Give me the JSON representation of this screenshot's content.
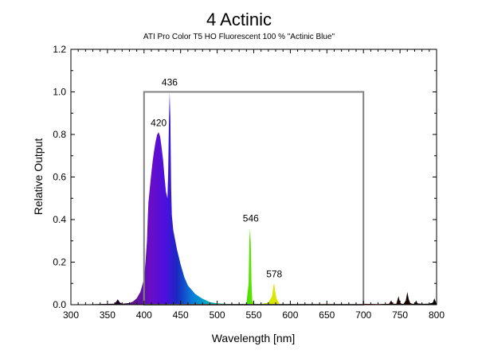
{
  "chart_data": {
    "type": "area",
    "title": "4 Actinic",
    "subtitle": "ATI Pro Color T5 HO Fluorescent 100 % \"Actinic Blue\"",
    "xlabel": "Wavelength [nm]",
    "ylabel": "Relative Output",
    "xlim": [
      300,
      800
    ],
    "ylim": [
      0,
      1.2
    ],
    "xticks": [
      "300",
      "350",
      "400",
      "450",
      "500",
      "550",
      "600",
      "650",
      "700",
      "750",
      "800"
    ],
    "yticks": [
      "0.0",
      "0.2",
      "0.4",
      "0.6",
      "0.8",
      "1.0",
      "1.2"
    ],
    "grid": false,
    "legend": "none",
    "visible_range_box": {
      "x": [
        400,
        700
      ],
      "y": [
        0,
        1.0
      ],
      "color": "#808080"
    },
    "peak_labels": [
      {
        "label": "420",
        "x": 420,
        "y": 0.81
      },
      {
        "label": "436",
        "x": 435,
        "y": 1.0
      },
      {
        "label": "546",
        "x": 546,
        "y": 0.36
      },
      {
        "label": "578",
        "x": 578,
        "y": 0.1
      }
    ],
    "series": [
      {
        "x": [
          300,
          360,
          364,
          367,
          370,
          380,
          385,
          390,
          395,
          400,
          402,
          404,
          405,
          406,
          408,
          410,
          412,
          414,
          416,
          418,
          420,
          422,
          424,
          426,
          428,
          430,
          432,
          433,
          434,
          435,
          436,
          437,
          438,
          440,
          445,
          450,
          455,
          460,
          470,
          480,
          490,
          500,
          520,
          540,
          543,
          544,
          545,
          546,
          547,
          548,
          550,
          560,
          570,
          575,
          577,
          578,
          579,
          581,
          585,
          600,
          650,
          690,
          700,
          720,
          735,
          738,
          740,
          745,
          748,
          750,
          752,
          755,
          758,
          760,
          762,
          764,
          766,
          770,
          772,
          774,
          780,
          790,
          795,
          797,
          799,
          800
        ],
        "y": [
          0,
          0.005,
          0.025,
          0.01,
          0.005,
          0.008,
          0.015,
          0.03,
          0.06,
          0.12,
          0.2,
          0.3,
          0.4,
          0.48,
          0.55,
          0.62,
          0.68,
          0.73,
          0.77,
          0.8,
          0.81,
          0.79,
          0.74,
          0.68,
          0.6,
          0.53,
          0.5,
          0.62,
          0.85,
          1.0,
          0.88,
          0.55,
          0.42,
          0.35,
          0.26,
          0.19,
          0.13,
          0.09,
          0.05,
          0.028,
          0.012,
          0.006,
          0.003,
          0.004,
          0.1,
          0.3,
          0.36,
          0.28,
          0.1,
          0.02,
          0.005,
          0.003,
          0.01,
          0.04,
          0.09,
          0.1,
          0.07,
          0.03,
          0.005,
          0.002,
          0.004,
          0.003,
          0.004,
          0.003,
          0.004,
          0.02,
          0.005,
          0.004,
          0.04,
          0.01,
          0.005,
          0.004,
          0.02,
          0.06,
          0.025,
          0.008,
          0.005,
          0.004,
          0.02,
          0.006,
          0.004,
          0.005,
          0.01,
          0.03,
          0.012,
          0
        ]
      }
    ]
  }
}
